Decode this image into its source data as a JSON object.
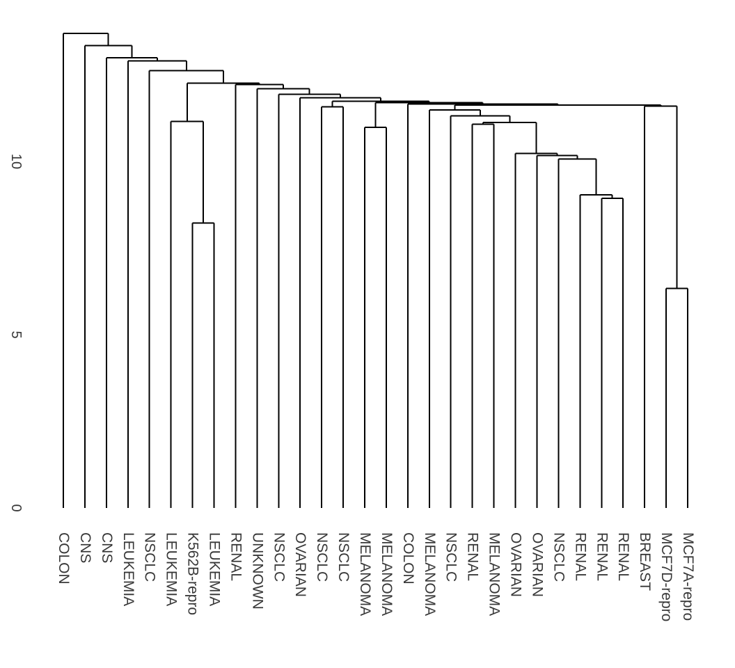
{
  "figure": {
    "title": "",
    "background": "#ffffff"
  },
  "chart_data": {
    "type": "dendrogram",
    "subtype": "hierarchical-clustering-tree",
    "orientation": "leaves-bottom",
    "title": "",
    "xlabel": "",
    "ylabel": "",
    "ylim": [
      0,
      14
    ],
    "grid": false,
    "line_color": "#000000",
    "label_color": "#383838",
    "yaxis": {
      "ticks": [
        0,
        5,
        10
      ],
      "tick_labels": [
        "0",
        "5",
        "10"
      ],
      "label_rotation_deg": 90
    },
    "leaves": [
      "COLON",
      "CNS",
      "CNS",
      "LEUKEMIA",
      "NSCLC",
      "LEUKEMIA",
      "K562B-repro",
      "LEUKEMIA",
      "RENAL",
      "UNKNOWN",
      "NSCLC",
      "OVARIAN",
      "NSCLC",
      "NSCLC",
      "MELANOMA",
      "MELANOMA",
      "COLON",
      "MELANOMA",
      "NSCLC",
      "RENAL",
      "MELANOMA",
      "OVARIAN",
      "OVARIAN",
      "NSCLC",
      "RENAL",
      "RENAL",
      "RENAL",
      "BREAST",
      "MCF7D-repro",
      "MCF7A-repro"
    ],
    "leaf_label_rotation_deg": 90,
    "merges_note": "each row [a,b,height]; a,b reference leaf index 0-29 or merge id 30+row",
    "merges": [
      [
        28,
        29,
        6.34
      ],
      [
        6,
        7,
        8.22
      ],
      [
        25,
        26,
        8.94
      ],
      [
        24,
        32,
        9.04
      ],
      [
        23,
        33,
        10.07
      ],
      [
        22,
        34,
        10.17
      ],
      [
        21,
        35,
        10.23
      ],
      [
        19,
        20,
        11.07
      ],
      [
        37,
        36,
        11.12
      ],
      [
        18,
        38,
        11.32
      ],
      [
        17,
        39,
        11.49
      ],
      [
        27,
        30,
        11.6
      ],
      [
        40,
        41,
        11.63
      ],
      [
        16,
        42,
        11.66
      ],
      [
        14,
        15,
        10.98
      ],
      [
        44,
        43,
        11.7
      ],
      [
        12,
        13,
        11.58
      ],
      [
        46,
        45,
        11.74
      ],
      [
        11,
        47,
        11.84
      ],
      [
        10,
        48,
        11.94
      ],
      [
        9,
        49,
        12.1
      ],
      [
        8,
        50,
        12.22
      ],
      [
        5,
        31,
        11.15
      ],
      [
        52,
        51,
        12.26
      ],
      [
        4,
        53,
        12.62
      ],
      [
        3,
        54,
        12.9
      ],
      [
        2,
        55,
        12.99
      ],
      [
        1,
        56,
        13.34
      ],
      [
        0,
        57,
        13.69
      ]
    ]
  }
}
